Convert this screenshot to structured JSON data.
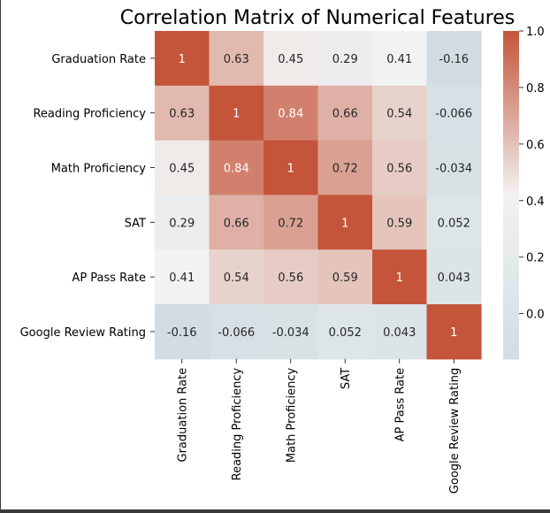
{
  "chart_data": {
    "type": "heatmap",
    "title": "Correlation Matrix of Numerical Features",
    "row_labels": [
      "Graduation Rate",
      "Reading Proficiency",
      "Math Proficiency",
      "SAT",
      "AP Pass Rate",
      "Google Review Rating"
    ],
    "col_labels": [
      "Graduation Rate",
      "Reading Proficiency",
      "Math Proficiency",
      "SAT",
      "AP Pass Rate",
      "Google Review Rating"
    ],
    "values": [
      [
        1,
        0.63,
        0.45,
        0.29,
        0.41,
        -0.16
      ],
      [
        0.63,
        1,
        0.84,
        0.66,
        0.54,
        -0.066
      ],
      [
        0.45,
        0.84,
        1,
        0.72,
        0.56,
        -0.034
      ],
      [
        0.29,
        0.66,
        0.72,
        1,
        0.59,
        0.052
      ],
      [
        0.41,
        0.54,
        0.56,
        0.59,
        1,
        0.043
      ],
      [
        -0.16,
        -0.066,
        -0.034,
        0.052,
        0.043,
        1
      ]
    ],
    "annotations": [
      [
        "1",
        "0.63",
        "0.45",
        "0.29",
        "0.41",
        "-0.16"
      ],
      [
        "0.63",
        "1",
        "0.84",
        "0.66",
        "0.54",
        "-0.066"
      ],
      [
        "0.45",
        "0.84",
        "1",
        "0.72",
        "0.56",
        "-0.034"
      ],
      [
        "0.29",
        "0.66",
        "0.72",
        "1",
        "0.59",
        "0.052"
      ],
      [
        "0.41",
        "0.54",
        "0.56",
        "0.59",
        "1",
        "0.043"
      ],
      [
        "-0.16",
        "-0.066",
        "-0.034",
        "0.052",
        "0.043",
        "1"
      ]
    ],
    "colorbar": {
      "range": [
        -0.16,
        1.0
      ],
      "ticks": [
        0.0,
        0.2,
        0.4,
        0.6,
        0.8,
        1.0
      ],
      "tick_labels": [
        "0.0",
        "0.2",
        "0.4",
        "0.6",
        "0.8",
        "1.0"
      ],
      "low_color": "#d1dde2",
      "mid_color": "#f2f2f2",
      "high_color": "#c4553a"
    }
  }
}
